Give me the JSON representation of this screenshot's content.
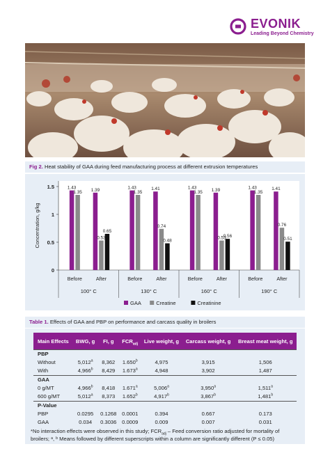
{
  "brand": {
    "name": "EVONIK",
    "tagline": "Leading Beyond Chemistry",
    "color": "#8b1e8f"
  },
  "photo": {
    "subject_icon": "broiler-chickens-photo"
  },
  "figure": {
    "label": "Fig 2.",
    "text": "Heat stability of GAA during feed manufacturing process at different extrusion temperatures"
  },
  "chart_data": {
    "type": "bar",
    "ylabel": "Concentration, g/kg",
    "ylim": [
      0,
      1.6
    ],
    "yticks": [
      "0",
      "0.5",
      "1",
      "1.5"
    ],
    "legend_position": "bottom",
    "groups": [
      "100° C",
      "130° C",
      "160° C",
      "190° C"
    ],
    "subcategories": [
      "Before",
      "After"
    ],
    "series": [
      {
        "name": "GAA",
        "color": "#8b1e8f",
        "values": [
          1.43,
          1.39,
          1.43,
          1.41,
          1.43,
          1.39,
          1.43,
          1.41
        ],
        "labels": [
          "1.43",
          "1.39",
          "1.43",
          "1.41",
          "1.43",
          "1.39",
          "1.43",
          "1.41"
        ]
      },
      {
        "name": "Creatine",
        "color": "#8a8a8a",
        "values": [
          1.35,
          0.53,
          1.35,
          0.74,
          1.35,
          0.53,
          1.35,
          0.76
        ],
        "labels": [
          "1.35",
          "0.53",
          "1.35",
          "0.74",
          "1.35",
          "0.53",
          "1.35",
          "0.76"
        ]
      },
      {
        "name": "Creatinine",
        "color": "#111111",
        "values": [
          null,
          0.65,
          null,
          0.48,
          null,
          0.56,
          null,
          0.51
        ],
        "labels": [
          null,
          "0.65",
          null,
          "0.48",
          null,
          "0.56",
          null,
          "0.51"
        ]
      }
    ]
  },
  "table": {
    "label": "Table 1.",
    "caption": "Effects of GAA and PBP on performance and carcass quality in broilers",
    "headers": {
      "effects": "Main Effects",
      "bwg": "BWG, g",
      "fi": "FI, g",
      "fcr": "FCR",
      "fcr_sub": "adj",
      "lw": "Live weight, g",
      "cw": "Carcass weight, g",
      "bmw": "Breast meat weight, g"
    },
    "sections": [
      {
        "title": "PBP",
        "rows": [
          {
            "label": "Without",
            "cells": [
              {
                "v": "5,012",
                "s": "a"
              },
              {
                "v": "8,362",
                "s": ""
              },
              {
                "v": "1.650",
                "s": "b"
              },
              {
                "v": "4,975",
                "s": ""
              },
              {
                "v": "3,915",
                "s": ""
              },
              {
                "v": "1,506",
                "s": ""
              }
            ]
          },
          {
            "label": "With",
            "cells": [
              {
                "v": "4,966",
                "s": "b"
              },
              {
                "v": "8,429",
                "s": ""
              },
              {
                "v": "1.673",
                "s": "a"
              },
              {
                "v": "4,948",
                "s": ""
              },
              {
                "v": "3,902",
                "s": ""
              },
              {
                "v": "1,487",
                "s": ""
              }
            ]
          }
        ]
      },
      {
        "title": "GAA",
        "rows": [
          {
            "label": "0 g/MT",
            "cells": [
              {
                "v": "4,966",
                "s": "b"
              },
              {
                "v": "8,418",
                "s": ""
              },
              {
                "v": "1.671",
                "s": "a"
              },
              {
                "v": "5,006",
                "s": "a"
              },
              {
                "v": "3,950",
                "s": "a"
              },
              {
                "v": "1,511",
                "s": "a"
              }
            ]
          },
          {
            "label": "600 g/MT",
            "cells": [
              {
                "v": "5,012",
                "s": "a"
              },
              {
                "v": "8,373",
                "s": ""
              },
              {
                "v": "1.652",
                "s": "b"
              },
              {
                "v": "4,917",
                "s": "b"
              },
              {
                "v": "3,867",
                "s": "b"
              },
              {
                "v": "1,481",
                "s": "b"
              }
            ]
          }
        ]
      },
      {
        "title": "P-Value",
        "rows": [
          {
            "label": "PBP",
            "cells": [
              {
                "v": "0.0295",
                "s": ""
              },
              {
                "v": "0.1268",
                "s": ""
              },
              {
                "v": "0.0001",
                "s": ""
              },
              {
                "v": "0.394",
                "s": ""
              },
              {
                "v": "0.667",
                "s": ""
              },
              {
                "v": "0.173",
                "s": ""
              }
            ]
          },
          {
            "label": "GAA",
            "cells": [
              {
                "v": "0.034",
                "s": ""
              },
              {
                "v": "0.3036",
                "s": ""
              },
              {
                "v": "0.0009",
                "s": ""
              },
              {
                "v": "0.009",
                "s": ""
              },
              {
                "v": "0.007",
                "s": ""
              },
              {
                "v": "0.031",
                "s": ""
              }
            ]
          }
        ]
      }
    ]
  },
  "footnote": {
    "line1_a": "*No interaction effects were observed in this study; FCR",
    "line1_sub": "adj",
    "line1_b": " – Feed conversion ratio adjusted for mortality of",
    "line2": "broilers; ᵃ, ᵇ Means followed by different superscripts within a column are significantly different (P ≤ 0.05)"
  }
}
